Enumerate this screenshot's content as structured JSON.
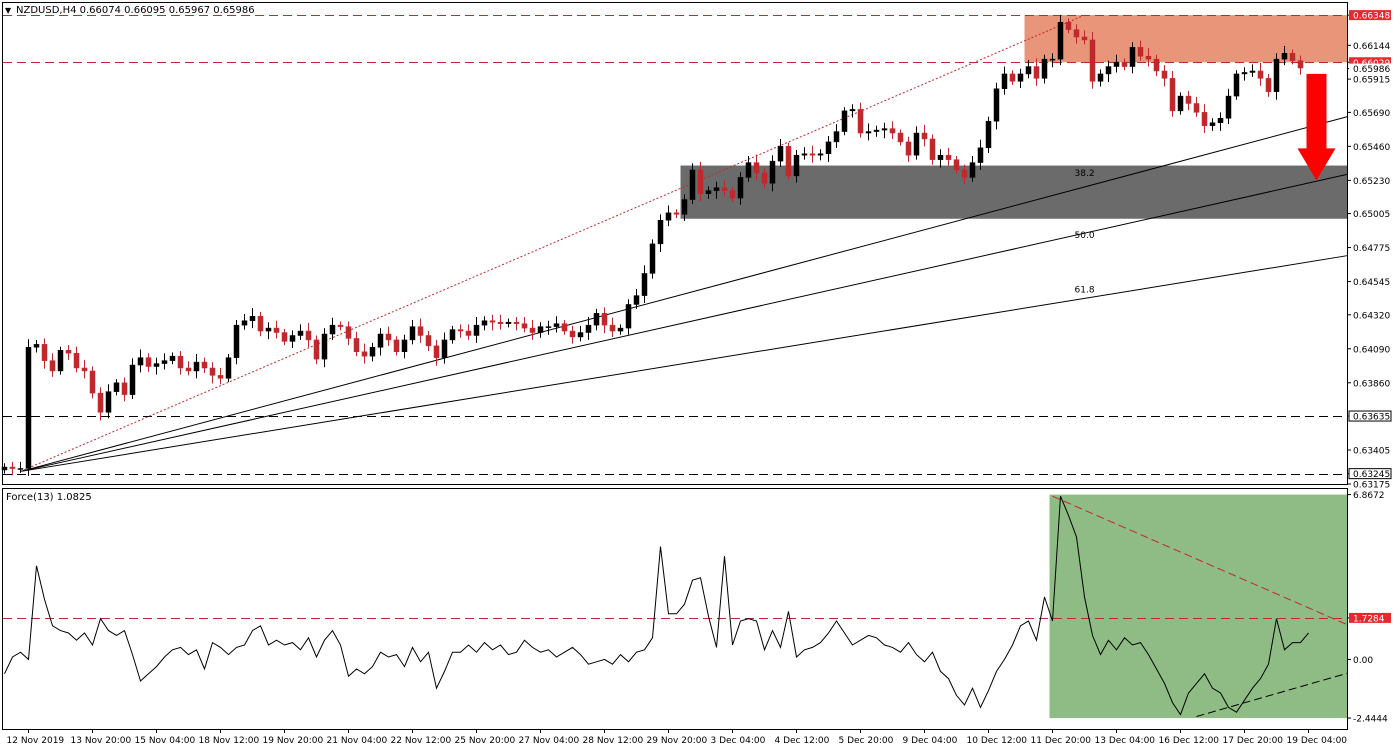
{
  "header": {
    "symbol_line": "NZDUSD,H4  0.66074 0.66095 0.65967 0.65986",
    "force_line": "Force(13) 1.0825"
  },
  "colors": {
    "bull": "#000000",
    "bear": "#c0282d",
    "resistance_zone": "#e8957a",
    "support_zone": "#6b6b6b",
    "force_zone": "#8fbc84",
    "arrow": "#ff0000",
    "level_line": "#c0282d",
    "price_badge": "#e8282d"
  },
  "chart_data": [
    {
      "type": "candlestick",
      "title": "NZDUSD,H4",
      "ylim": [
        0.63175,
        0.6643
      ],
      "price_ticks": [
        "0.66348",
        "0.66144",
        "0.66029",
        "0.65986",
        "0.65915",
        "0.65690",
        "0.65460",
        "0.65230",
        "0.65005",
        "0.64775",
        "0.64545",
        "0.64320",
        "0.64090",
        "0.63860",
        "0.63635",
        "0.63405",
        "0.63245",
        "0.63175"
      ],
      "highlighted_prices": [
        "0.66348",
        "0.66029",
        "0.65986",
        "0.63635",
        "0.63245"
      ],
      "horizontal_levels": [
        {
          "price": 0.66348,
          "style": "red-dashed"
        },
        {
          "price": 0.66029,
          "style": "red-dashed"
        },
        {
          "price": 0.63635,
          "style": "black-dashed"
        },
        {
          "price": 0.63245,
          "style": "black-dashed"
        }
      ],
      "zones": [
        {
          "name": "resistance",
          "from_index": 128,
          "to_index": 168,
          "low": 0.66029,
          "high": 0.66348
        },
        {
          "name": "fibonacci-support",
          "from_index": 85,
          "to_index": 168,
          "low": 0.6497,
          "high": 0.6533
        }
      ],
      "fib_labels": [
        {
          "label": "38.2",
          "index": 135,
          "price": 0.6526
        },
        {
          "label": "50.0",
          "index": 135,
          "price": 0.6484
        },
        {
          "label": "61.8",
          "index": 135,
          "price": 0.6447
        }
      ],
      "fan_lines": [
        {
          "from": [
            2,
            0.6326
          ],
          "to": [
            168,
            0.6566
          ],
          "style": "solid"
        },
        {
          "from": [
            2,
            0.6326
          ],
          "to": [
            168,
            0.6527
          ],
          "style": "solid"
        },
        {
          "from": [
            2,
            0.6326
          ],
          "to": [
            168,
            0.6472
          ],
          "style": "solid"
        },
        {
          "from": [
            2,
            0.6326
          ],
          "to": [
            135,
            0.66348
          ],
          "style": "red-dotted"
        }
      ],
      "arrow": {
        "direction": "down",
        "index": 164,
        "from": 0.6595,
        "to": 0.6523
      },
      "x_labels": [
        {
          "label": "12 Nov 2019",
          "index": 3
        },
        {
          "label": "13 Nov 20:00",
          "index": 11
        },
        {
          "label": "15 Nov 04:00",
          "index": 19
        },
        {
          "label": "18 Nov 12:00",
          "index": 27
        },
        {
          "label": "19 Nov 20:00",
          "index": 35
        },
        {
          "label": "21 Nov 04:00",
          "index": 43
        },
        {
          "label": "22 Nov 12:00",
          "index": 51
        },
        {
          "label": "25 Nov 20:00",
          "index": 59
        },
        {
          "label": "27 Nov 04:00",
          "index": 67
        },
        {
          "label": "28 Nov 12:00",
          "index": 75
        },
        {
          "label": "29 Nov 20:00",
          "index": 83
        },
        {
          "label": "3 Dec 04:00",
          "index": 91
        },
        {
          "label": "4 Dec 12:00",
          "index": 99
        },
        {
          "label": "5 Dec 20:00",
          "index": 107
        },
        {
          "label": "9 Dec 04:00",
          "index": 115
        },
        {
          "label": "10 Dec 12:00",
          "index": 123
        },
        {
          "label": "11 Dec 20:00",
          "index": 131
        },
        {
          "label": "13 Dec 04:00",
          "index": 139
        },
        {
          "label": "16 Dec 12:00",
          "index": 147
        },
        {
          "label": "17 Dec 20:00",
          "index": 155
        },
        {
          "label": "19 Dec 04:00",
          "index": 163
        }
      ],
      "closes": [
        0.6329,
        0.6328,
        0.6328,
        0.641,
        0.6412,
        0.6401,
        0.6394,
        0.6408,
        0.6406,
        0.6396,
        0.6394,
        0.6379,
        0.6366,
        0.638,
        0.6386,
        0.6378,
        0.6398,
        0.6403,
        0.6397,
        0.6399,
        0.6401,
        0.6404,
        0.6396,
        0.6394,
        0.64,
        0.6396,
        0.6391,
        0.6389,
        0.6403,
        0.6425,
        0.6428,
        0.6431,
        0.6421,
        0.6423,
        0.642,
        0.6414,
        0.6418,
        0.6421,
        0.6415,
        0.6402,
        0.6419,
        0.6425,
        0.6424,
        0.6416,
        0.6407,
        0.6404,
        0.641,
        0.6419,
        0.6415,
        0.6407,
        0.6415,
        0.6424,
        0.6418,
        0.6411,
        0.6403,
        0.6415,
        0.6422,
        0.6421,
        0.6418,
        0.6425,
        0.6428,
        0.6427,
        0.6426,
        0.6427,
        0.6426,
        0.6423,
        0.642,
        0.6424,
        0.6424,
        0.6426,
        0.6421,
        0.6417,
        0.642,
        0.6425,
        0.6433,
        0.6425,
        0.6421,
        0.6423,
        0.6439,
        0.6445,
        0.646,
        0.648,
        0.6496,
        0.6501,
        0.65,
        0.651,
        0.653,
        0.6514,
        0.6516,
        0.6518,
        0.6516,
        0.6511,
        0.6525,
        0.6535,
        0.6528,
        0.6521,
        0.6536,
        0.6546,
        0.6526,
        0.654,
        0.6541,
        0.654,
        0.6541,
        0.6549,
        0.6556,
        0.657,
        0.6571,
        0.6555,
        0.6556,
        0.6557,
        0.6558,
        0.6555,
        0.6549,
        0.654,
        0.6555,
        0.6551,
        0.6537,
        0.654,
        0.6537,
        0.653,
        0.6525,
        0.6535,
        0.6545,
        0.6563,
        0.6585,
        0.6595,
        0.659,
        0.6595,
        0.66,
        0.6592,
        0.6605,
        0.6605,
        0.663,
        0.6625,
        0.662,
        0.6618,
        0.659,
        0.6595,
        0.66,
        0.6603,
        0.66,
        0.6613,
        0.6607,
        0.6605,
        0.6597,
        0.6592,
        0.657,
        0.658,
        0.6575,
        0.6569,
        0.656,
        0.6562,
        0.6565,
        0.658,
        0.6595,
        0.6596,
        0.6597,
        0.6592,
        0.6583,
        0.6605,
        0.6609,
        0.6604,
        0.6599
      ]
    },
    {
      "type": "line",
      "title": "Force(13) 1.0825",
      "ylim": [
        -2.9,
        7.1
      ],
      "y_ticks": [
        "6.8672",
        "1.7284",
        "0.00",
        "-2.4444"
      ],
      "highlighted_value": "1.7284",
      "reference_line": {
        "value": 1.7284,
        "style": "red-dashed"
      },
      "zone": {
        "from_index": 131,
        "to_index": 168,
        "low": -2.4444,
        "high": 6.8672
      },
      "trend_lines": [
        {
          "from": [
            131,
            6.8
          ],
          "to": [
            168,
            1.45
          ],
          "style": "red-dashed"
        },
        {
          "from": [
            149,
            -2.38
          ],
          "to": [
            168,
            -0.58
          ],
          "style": "black-dashed"
        }
      ],
      "values": [
        -0.6,
        0.1,
        0.3,
        0.0,
        3.9,
        2.5,
        1.4,
        1.2,
        1.1,
        0.8,
        1.1,
        0.6,
        1.7,
        1.2,
        1.0,
        1.2,
        0.2,
        -0.9,
        -0.6,
        -0.3,
        0.1,
        0.4,
        0.5,
        0.2,
        0.4,
        -0.4,
        0.7,
        0.5,
        0.2,
        0.5,
        0.6,
        1.2,
        1.4,
        0.6,
        0.8,
        0.6,
        0.7,
        0.4,
        0.9,
        0.1,
        0.8,
        1.2,
        0.6,
        -0.7,
        -0.4,
        -0.6,
        -0.3,
        0.3,
        0.1,
        0.2,
        -0.3,
        0.5,
        -0.1,
        0.3,
        -1.2,
        -0.5,
        0.3,
        0.3,
        0.6,
        0.3,
        0.7,
        0.4,
        0.6,
        0.2,
        0.3,
        0.8,
        0.5,
        0.3,
        0.4,
        0.1,
        0.3,
        0.5,
        0.2,
        -0.2,
        -0.1,
        0.0,
        -0.2,
        0.2,
        -0.1,
        0.3,
        0.4,
        0.9,
        4.7,
        1.9,
        1.9,
        2.3,
        3.3,
        3.4,
        1.8,
        0.5,
        4.3,
        0.6,
        1.6,
        1.7,
        1.6,
        0.4,
        1.2,
        0.5,
        2.0,
        0.1,
        0.4,
        0.5,
        0.7,
        1.1,
        1.6,
        1.1,
        0.6,
        0.8,
        1.0,
        0.9,
        0.6,
        0.5,
        0.3,
        0.7,
        0.2,
        -0.1,
        0.3,
        -0.5,
        -0.8,
        -1.5,
        -1.9,
        -1.2,
        -2.0,
        -1.3,
        -0.5,
        -0.0,
        0.6,
        1.4,
        1.6,
        0.8,
        2.6,
        1.6,
        6.8,
        6.0,
        5.1,
        2.6,
        1.0,
        0.2,
        0.8,
        0.4,
        0.9,
        0.6,
        0.7,
        0.2,
        -0.4,
        -1.0,
        -1.8,
        -2.3,
        -1.4,
        -1.0,
        -0.6,
        -1.2,
        -1.4,
        -2.0,
        -2.2,
        -1.7,
        -1.2,
        -0.8,
        -0.2,
        1.7,
        0.4,
        0.7,
        0.7,
        1.1
      ]
    }
  ]
}
